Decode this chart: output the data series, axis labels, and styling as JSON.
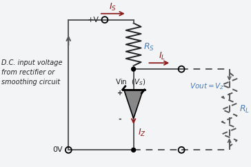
{
  "bg_color": "#f2f4f5",
  "wire_color": "#555555",
  "arrow_color": "#8b1a1a",
  "label_color": "#4a7ab5",
  "text_color": "#222222",
  "dashed_color": "#555555",
  "resistor_color": "#222222",
  "diode_fill": "#888888",
  "dc_text": "D.C. input voltage\nfrom rectifier or\nsmoothing circuit",
  "plus_v": "+V",
  "zero_v": "0V",
  "plus_sign": "+",
  "minus_sign": "-"
}
